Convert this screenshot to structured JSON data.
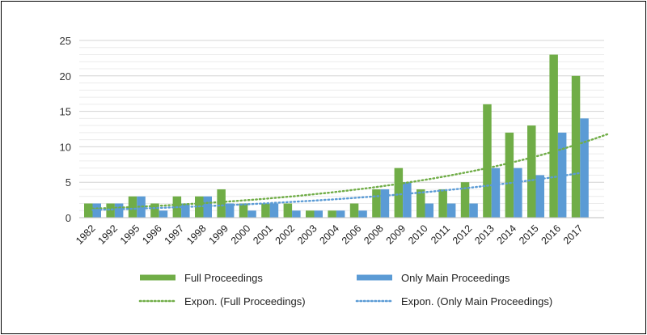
{
  "chart_data": {
    "type": "bar",
    "title": "",
    "xlabel": "",
    "ylabel": "",
    "ylim": [
      0,
      25
    ],
    "yticks": [
      0,
      5,
      10,
      15,
      20,
      25
    ],
    "grid": "horizontal",
    "legend_position": "bottom",
    "categories": [
      "1982",
      "1992",
      "1995",
      "1996",
      "1997",
      "1998",
      "1999",
      "2000",
      "2001",
      "2002",
      "2003",
      "2004",
      "2006",
      "2008",
      "2009",
      "2010",
      "2011",
      "2012",
      "2013",
      "2014",
      "2015",
      "2016",
      "2017"
    ],
    "series": [
      {
        "name": "Full Proceedings",
        "color": "#70ad47",
        "values": [
          2,
          2,
          3,
          2,
          3,
          3,
          4,
          2,
          2,
          2,
          1,
          1,
          2,
          4,
          7,
          4,
          4,
          5,
          16,
          12,
          13,
          23,
          20
        ]
      },
      {
        "name": "Only Main Proceedings",
        "color": "#5b9bd5",
        "values": [
          2,
          2,
          3,
          1,
          2,
          3,
          2,
          1,
          2,
          1,
          1,
          1,
          1,
          4,
          5,
          2,
          2,
          2,
          7,
          7,
          6,
          12,
          14
        ]
      }
    ],
    "trendlines": [
      {
        "name": "Expon. (Full Proceedings)",
        "series": "Full Proceedings",
        "kind": "exponential",
        "color": "#70ad47",
        "style": "dotted",
        "a": 1.15,
        "b": 0.096,
        "forward_periods": 1.4
      },
      {
        "name": "Expon. (Only Main Proceedings)",
        "series": "Only Main Proceedings",
        "kind": "exponential",
        "color": "#5b9bd5",
        "style": "dotted",
        "a": 1.0,
        "b": 0.08,
        "forward_periods": 0
      }
    ]
  }
}
